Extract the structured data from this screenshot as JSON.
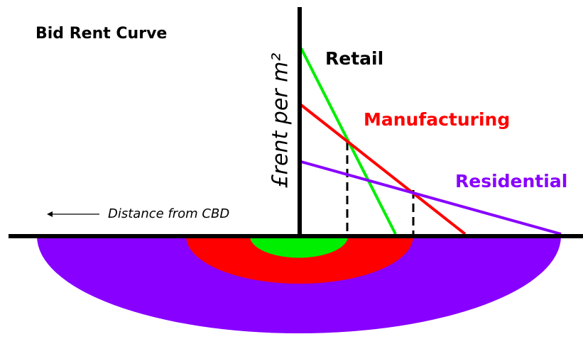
{
  "title": "Bid Rent Curve",
  "y_axis_label": "£rent per m²",
  "x_axis_label": "Distance from CBD",
  "curves": [
    {
      "label": "Retail"
    },
    {
      "label": "Manufacturing"
    },
    {
      "label": "Residential"
    }
  ]
}
